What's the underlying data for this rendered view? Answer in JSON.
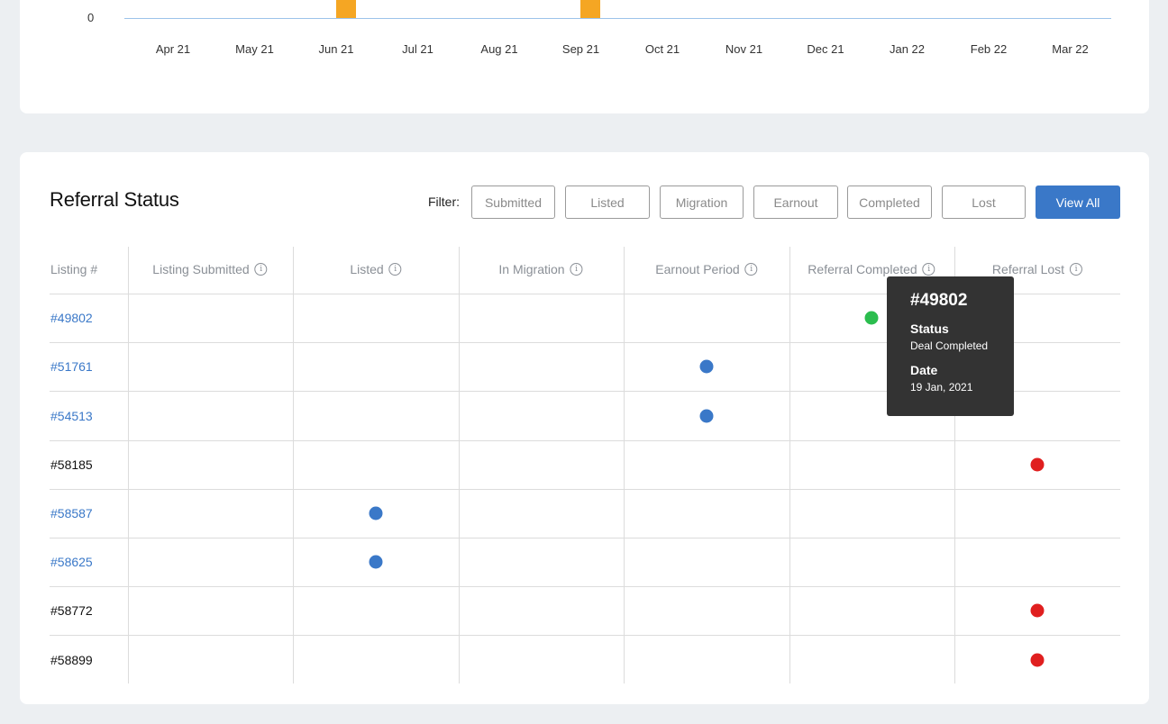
{
  "chart_data": {
    "type": "bar",
    "categories": [
      "Apr 21",
      "May 21",
      "Jun 21",
      "Jul 21",
      "Aug 21",
      "Sep 21",
      "Oct 21",
      "Nov 21",
      "Dec 21",
      "Jan 22",
      "Feb 22",
      "Mar 22"
    ],
    "y_tick_visible": "0",
    "colors": {
      "bar": "#f5a623",
      "axis": "#9cc3ea"
    }
  },
  "referral": {
    "title": "Referral Status",
    "filter_label": "Filter:",
    "filters": [
      "Submitted",
      "Listed",
      "Migration",
      "Earnout",
      "Completed",
      "Lost"
    ],
    "view_all": "View All",
    "columns": [
      "Listing #",
      "Listing Submitted",
      "Listed",
      "In Migration",
      "Earnout Period",
      "Referral Completed",
      "Referral Lost"
    ],
    "rows": [
      {
        "listing": "#49802",
        "link": true,
        "stage": 5,
        "color": "#2bbd4e"
      },
      {
        "listing": "#51761",
        "link": true,
        "stage": 4,
        "color": "#3a78c8"
      },
      {
        "listing": "#54513",
        "link": true,
        "stage": 4,
        "color": "#3a78c8"
      },
      {
        "listing": "#58185",
        "link": false,
        "stage": 6,
        "color": "#e01f1f"
      },
      {
        "listing": "#58587",
        "link": true,
        "stage": 2,
        "color": "#3a78c8"
      },
      {
        "listing": "#58625",
        "link": true,
        "stage": 2,
        "color": "#3a78c8"
      },
      {
        "listing": "#58772",
        "link": false,
        "stage": 6,
        "color": "#e01f1f"
      },
      {
        "listing": "#58899",
        "link": false,
        "stage": 6,
        "color": "#e01f1f"
      }
    ]
  },
  "tooltip": {
    "id": "#49802",
    "status_label": "Status",
    "status_value": "Deal Completed",
    "date_label": "Date",
    "date_value": "19 Jan, 2021"
  },
  "icons": {
    "info": "info-icon"
  }
}
